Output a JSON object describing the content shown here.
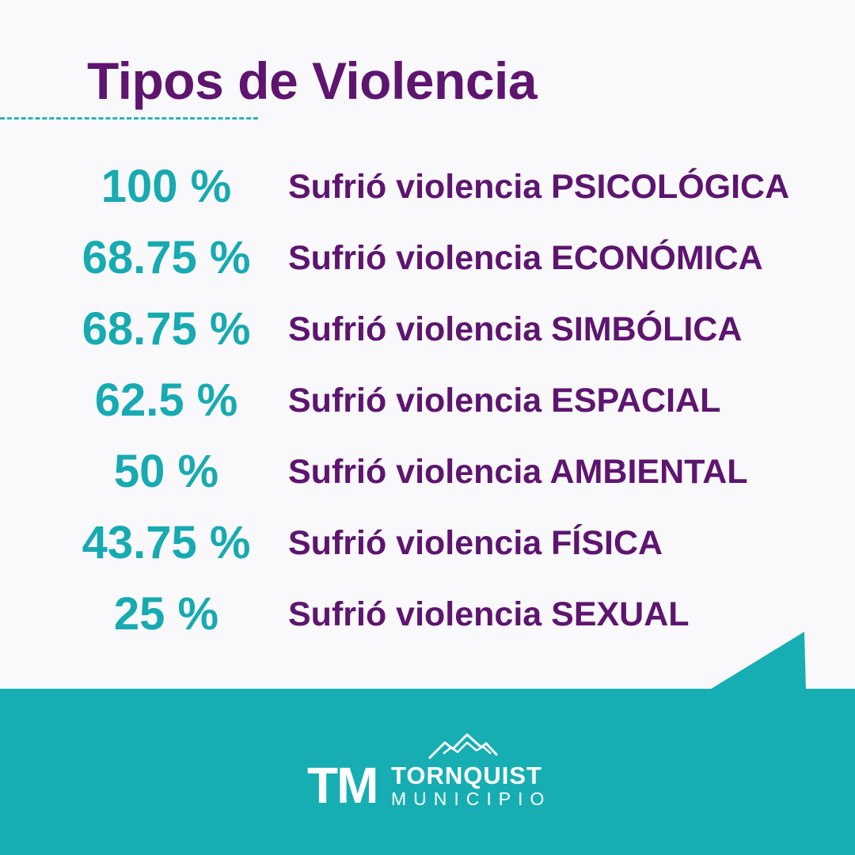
{
  "title": "Tipos de Violencia",
  "rows": [
    {
      "percent": "100 %",
      "label": "Sufrió violencia PSICOLÓGICA"
    },
    {
      "percent": "68.75 %",
      "label": "Sufrió violencia ECONÓMICA"
    },
    {
      "percent": "68.75 %",
      "label": "Sufrió violencia SIMBÓLICA"
    },
    {
      "percent": "62.5 %",
      "label": "Sufrió violencia ESPACIAL"
    },
    {
      "percent": "50 %",
      "label": "Sufrió violencia AMBIENTAL"
    },
    {
      "percent": "43.75 %",
      "label": "Sufrió violencia FÍSICA"
    },
    {
      "percent": "25 %",
      "label": "Sufrió violencia SEXUAL"
    }
  ],
  "logo": {
    "mark": "TM",
    "name": "TORNQUIST",
    "subtitle": "MUNICIPIO",
    "icon": "mountains-icon"
  },
  "colors": {
    "background": "#f9f8fa",
    "title": "#5d156f",
    "percent": "#17aab1",
    "footer": "#16aeb2"
  }
}
